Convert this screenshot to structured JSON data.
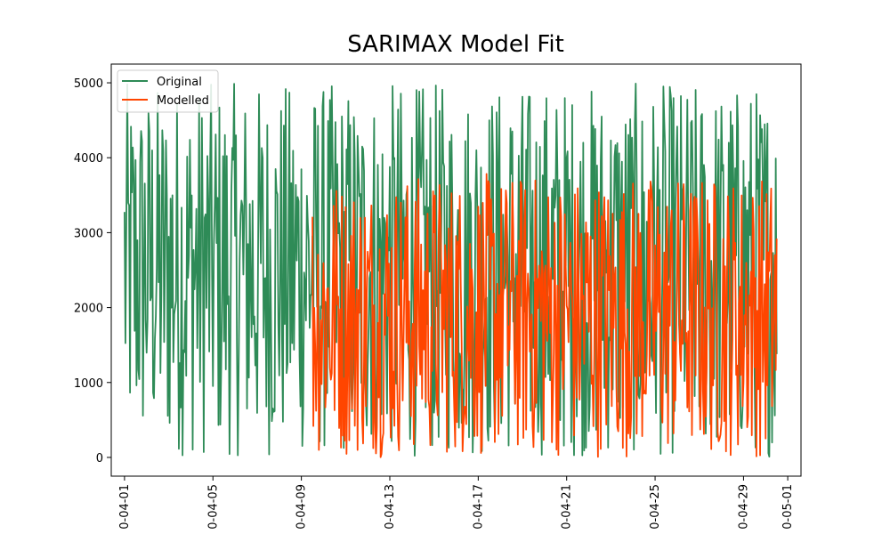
{
  "chart_data": {
    "type": "line",
    "title": "SARIMAX Model Fit",
    "xlabel": "",
    "ylabel": "",
    "x_tick_labels": [
      "0-04-01",
      "0-04-05",
      "0-04-09",
      "0-04-13",
      "0-04-17",
      "0-04-21",
      "0-04-25",
      "0-04-29",
      "0-05-01"
    ],
    "y_tick_labels": [
      "0",
      "1000",
      "2000",
      "3000",
      "4000",
      "5000"
    ],
    "y_ticks": [
      0,
      1000,
      2000,
      3000,
      4000,
      5000
    ],
    "ylim": [
      -250,
      5250
    ],
    "x_start_day": 1,
    "x_end_day": 30.5,
    "xlim_days": [
      0.4,
      31.6
    ],
    "legend_position": "upper-left",
    "grid": false,
    "series": [
      {
        "name": "Original",
        "color": "#2e8b57",
        "x_start_day": 1,
        "x_end_day": 30.5,
        "points_per_day": 24,
        "value_range": [
          0,
          5000
        ]
      },
      {
        "name": "Modelled",
        "color": "#ff4500",
        "x_start_day": 9.5,
        "x_end_day": 30.5,
        "points_per_day": 24,
        "value_range": [
          0,
          3800
        ]
      }
    ]
  }
}
